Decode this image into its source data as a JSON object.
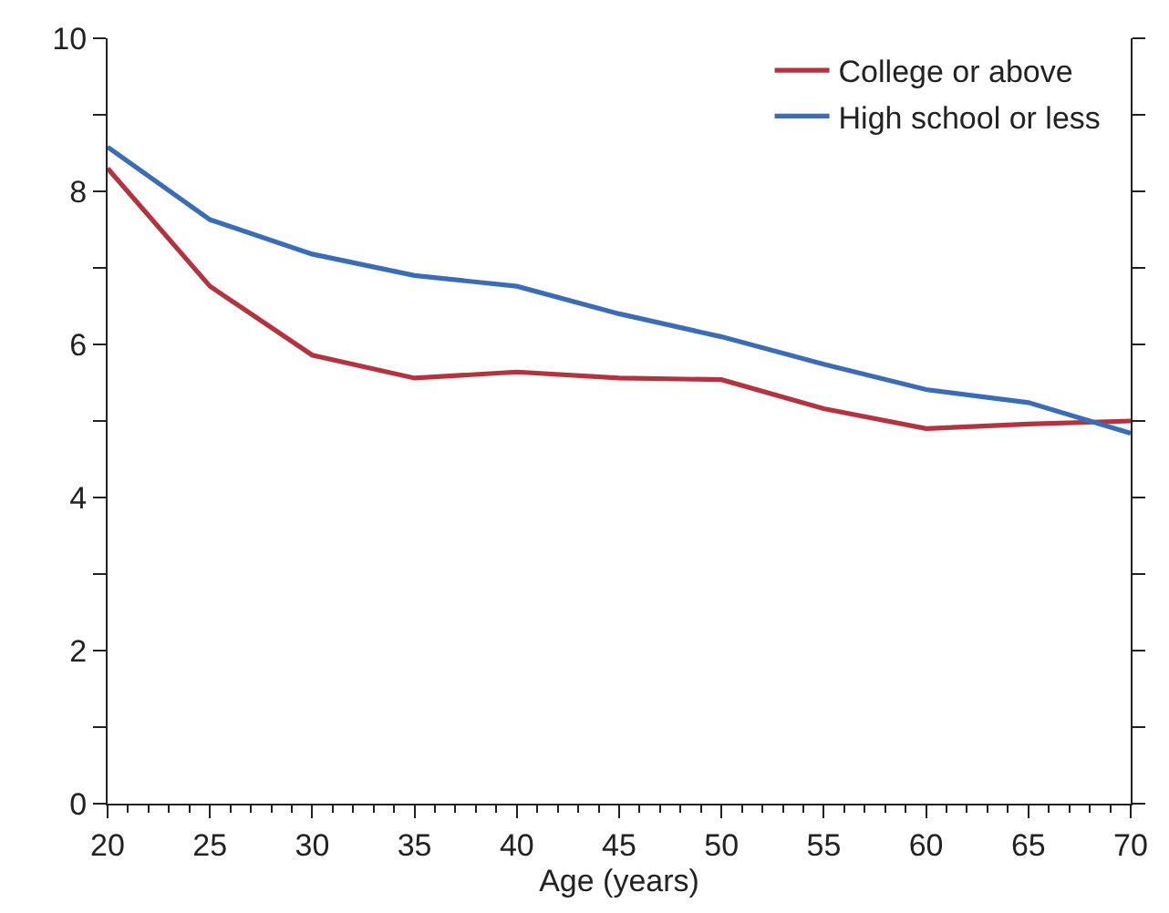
{
  "chart_data": {
    "type": "line",
    "xlabel": "Age (years)",
    "x": [
      20,
      25,
      30,
      35,
      40,
      45,
      50,
      55,
      60,
      65,
      70
    ],
    "series": [
      {
        "name": "College or above",
        "color": "#b3343f",
        "values": [
          8.3,
          6.76,
          5.86,
          5.56,
          5.64,
          5.56,
          5.54,
          5.16,
          4.9,
          4.96,
          5.0
        ]
      },
      {
        "name": "High school or less",
        "color": "#3b6db6",
        "values": [
          8.58,
          7.63,
          7.18,
          6.9,
          6.76,
          6.4,
          6.1,
          5.74,
          5.41,
          5.24,
          4.84
        ]
      }
    ],
    "xlim": [
      20,
      70
    ],
    "xticks": [
      20,
      25,
      30,
      35,
      40,
      45,
      50,
      55,
      60,
      65,
      70
    ],
    "ylim": [
      0,
      10
    ],
    "yticks": [
      0,
      {
        "value": 1,
        "label": null
      },
      2,
      {
        "value": 3,
        "label": null
      },
      4,
      {
        "value": 5,
        "label": null
      },
      6,
      {
        "value": 7,
        "label": null
      },
      8,
      {
        "value": 9,
        "label": null
      },
      10
    ],
    "grid": false,
    "legend": "top right",
    "marker": "none",
    "line_style": "solid"
  }
}
